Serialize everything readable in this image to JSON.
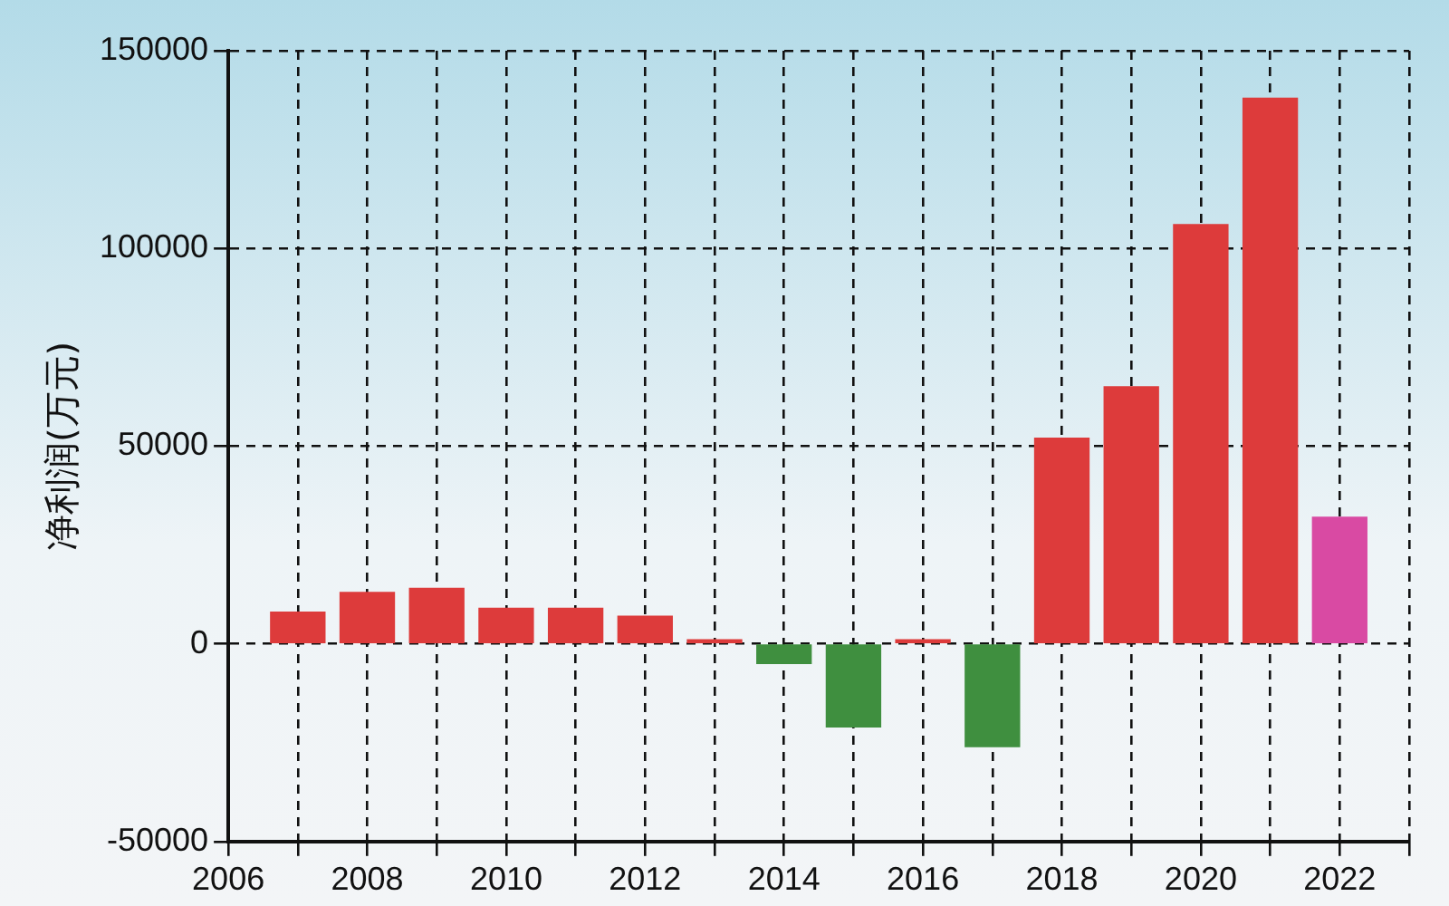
{
  "chart_data": {
    "type": "bar",
    "ylabel": "净利润(万元)",
    "x": [
      2007,
      2008,
      2009,
      2010,
      2011,
      2012,
      2013,
      2014,
      2015,
      2016,
      2017,
      2018,
      2019,
      2020,
      2021,
      2022
    ],
    "values": [
      8000,
      13000,
      14000,
      9000,
      9000,
      7000,
      1000,
      -5000,
      -21000,
      1000,
      -26000,
      52000,
      65000,
      106000,
      138000,
      32000
    ],
    "colors": [
      "#dd3b3b",
      "#dd3b3b",
      "#dd3b3b",
      "#dd3b3b",
      "#dd3b3b",
      "#dd3b3b",
      "#dd3b3b",
      "#3f8f3f",
      "#3f8f3f",
      "#dd3b3b",
      "#3f8f3f",
      "#dd3b3b",
      "#dd3b3b",
      "#dd3b3b",
      "#dd3b3b",
      "#d94aa3"
    ],
    "xlim": [
      2006,
      2023
    ],
    "xticks": [
      2006,
      {
        "value": 2007,
        "label": null
      },
      2008,
      {
        "value": 2009,
        "label": null
      },
      2010,
      {
        "value": 2011,
        "label": null
      },
      2012,
      {
        "value": 2013,
        "label": null
      },
      2014,
      {
        "value": 2015,
        "label": null
      },
      2016,
      {
        "value": 2017,
        "label": null
      },
      2018,
      {
        "value": 2019,
        "label": null
      },
      2020,
      {
        "value": 2021,
        "label": null
      },
      2022,
      {
        "value": 2023,
        "label": null
      }
    ],
    "ylim": [
      -50000,
      150000
    ],
    "yticks": [
      -50000,
      0,
      50000,
      100000,
      150000
    ],
    "grid": true,
    "legend": false
  }
}
